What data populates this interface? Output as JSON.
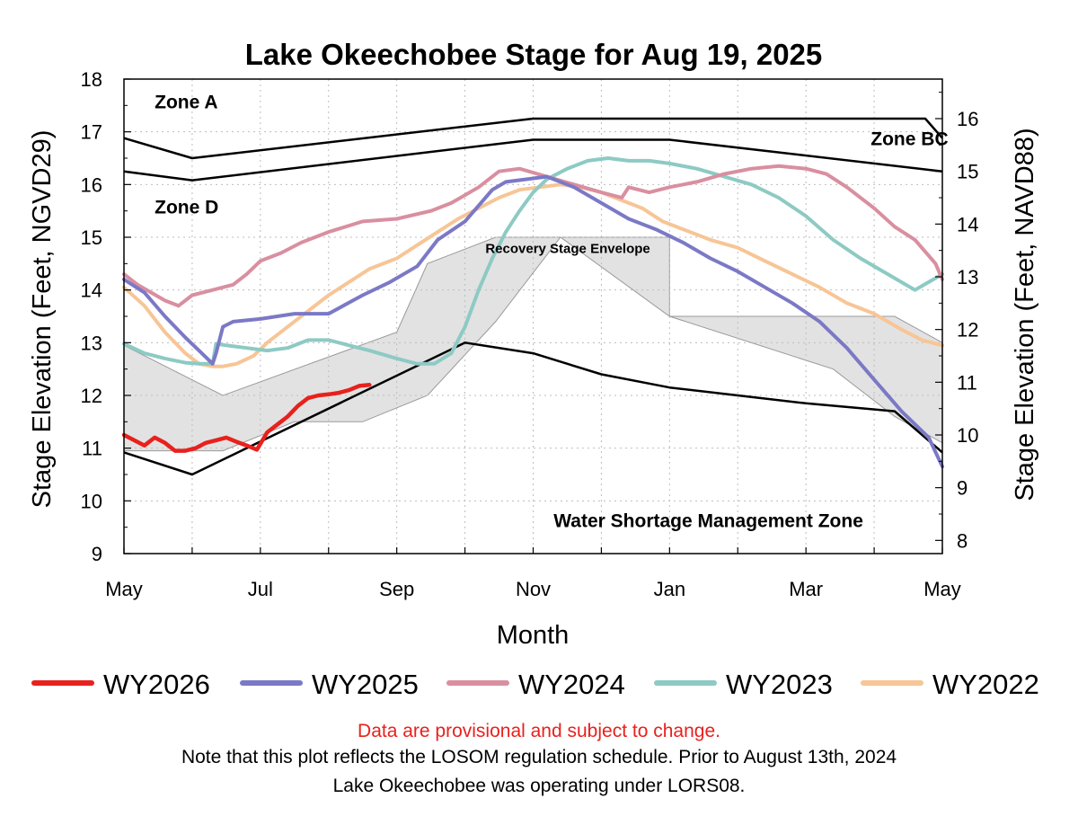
{
  "chart_data": {
    "type": "line",
    "title": "Lake Okeechobee Stage for Aug 19, 2025",
    "xlabel": "Month",
    "ylabel": "Stage Elevation (Feet, NGVD29)",
    "ylabel_right": "Stage Elevation (Feet, NAVD88)",
    "x_unit": "months since May 1",
    "xlim": [
      0,
      12
    ],
    "ylim": [
      9,
      18
    ],
    "ylim_right_offset": -1.25,
    "grid": true,
    "legend_position": "bottom",
    "x_tick_labels": [
      {
        "x": 0,
        "label": "May"
      },
      {
        "x": 2,
        "label": "Jul"
      },
      {
        "x": 4,
        "label": "Sep"
      },
      {
        "x": 6,
        "label": "Nov"
      },
      {
        "x": 8,
        "label": "Jan"
      },
      {
        "x": 10,
        "label": "Mar"
      },
      {
        "x": 12,
        "label": "May"
      }
    ],
    "y_ticks": [
      9,
      10,
      11,
      12,
      13,
      14,
      15,
      16,
      17,
      18
    ],
    "y_ticks_right": [
      8,
      9,
      10,
      11,
      12,
      13,
      14,
      15,
      16
    ],
    "zone_labels": [
      {
        "text": "Zone A",
        "x": 0.45,
        "y": 17.45
      },
      {
        "text": "Zone BC",
        "x": 10.95,
        "y": 16.75
      },
      {
        "text": "Zone D",
        "x": 0.45,
        "y": 15.45
      },
      {
        "text": "Water Shortage Management Zone",
        "x": 6.3,
        "y": 9.5
      }
    ],
    "envelope_label": {
      "text": "Recovery Stage Envelope",
      "x": 5.3,
      "y": 14.7
    },
    "schedule_lines": [
      {
        "name": "zone-a-line",
        "x": [
          0,
          1,
          6,
          10,
          11.75,
          12
        ],
        "y": [
          16.88,
          16.5,
          17.25,
          17.25,
          17.25,
          16.88
        ]
      },
      {
        "name": "zone-d-line",
        "x": [
          0,
          1,
          6,
          8,
          12
        ],
        "y": [
          16.25,
          16.08,
          16.85,
          16.85,
          16.25
        ]
      },
      {
        "name": "shortage-line",
        "x": [
          0,
          1,
          5,
          6,
          7,
          8,
          9,
          10,
          11.3,
          12
        ],
        "y": [
          10.92,
          10.5,
          13.0,
          12.8,
          12.4,
          12.15,
          12.0,
          11.85,
          11.7,
          10.92
        ]
      }
    ],
    "envelope": {
      "upper": {
        "x": [
          0,
          1.45,
          4.0,
          4.45,
          5.45,
          8.0,
          8.0,
          10.4,
          11.3,
          12
        ],
        "y": [
          12.95,
          12.0,
          13.2,
          14.5,
          15.0,
          15.0,
          13.5,
          13.5,
          13.5,
          13.0
        ]
      },
      "lower": {
        "x": [
          12,
          11.3,
          10.4,
          8.0,
          6.4,
          5.45,
          4.45,
          3.5,
          2.5,
          1.45,
          0
        ],
        "y": [
          11.1,
          11.6,
          12.5,
          13.5,
          15.0,
          13.4,
          12.0,
          11.5,
          11.5,
          10.95,
          10.95
        ]
      }
    },
    "series": [
      {
        "name": "WY2026",
        "color": "#e8211d",
        "x": [
          0,
          0.15,
          0.3,
          0.45,
          0.6,
          0.75,
          0.9,
          1.05,
          1.2,
          1.35,
          1.5,
          1.65,
          1.8,
          1.95,
          2.1,
          2.25,
          2.4,
          2.55,
          2.7,
          2.85,
          3.0,
          3.15,
          3.3,
          3.45,
          3.6
        ],
        "y": [
          11.25,
          11.15,
          11.05,
          11.2,
          11.1,
          10.95,
          10.95,
          11.0,
          11.1,
          11.15,
          11.2,
          11.12,
          11.05,
          10.97,
          11.3,
          11.45,
          11.6,
          11.8,
          11.95,
          12.0,
          12.02,
          12.05,
          12.1,
          12.18,
          12.2
        ]
      },
      {
        "name": "WY2025",
        "color": "#7b79c6",
        "x": [
          0,
          0.3,
          0.6,
          0.9,
          1.1,
          1.3,
          1.35,
          1.45,
          1.6,
          2.0,
          2.5,
          3.0,
          3.5,
          3.9,
          4.3,
          4.6,
          5.0,
          5.4,
          5.6,
          5.9,
          6.2,
          6.6,
          7.0,
          7.4,
          7.8,
          8.2,
          8.6,
          9.0,
          9.4,
          9.8,
          10.2,
          10.6,
          11.0,
          11.4,
          11.8,
          12
        ],
        "y": [
          14.2,
          13.95,
          13.5,
          13.1,
          12.85,
          12.6,
          12.8,
          13.3,
          13.4,
          13.45,
          13.55,
          13.55,
          13.9,
          14.15,
          14.45,
          14.95,
          15.3,
          15.9,
          16.05,
          16.1,
          16.15,
          15.95,
          15.65,
          15.35,
          15.15,
          14.9,
          14.6,
          14.35,
          14.05,
          13.75,
          13.4,
          12.9,
          12.3,
          11.7,
          11.2,
          10.65
        ]
      },
      {
        "name": "WY2024",
        "color": "#d98fa0",
        "x": [
          0,
          0.2,
          0.4,
          0.6,
          0.8,
          1.0,
          1.3,
          1.6,
          1.8,
          2.0,
          2.3,
          2.6,
          3.0,
          3.5,
          4.0,
          4.5,
          4.8,
          5.2,
          5.5,
          5.8,
          6.2,
          6.6,
          7.0,
          7.3,
          7.4,
          7.7,
          8.0,
          8.4,
          8.8,
          9.2,
          9.6,
          10.0,
          10.3,
          10.6,
          11.0,
          11.3,
          11.6,
          11.9,
          12
        ],
        "y": [
          14.3,
          14.1,
          13.95,
          13.8,
          13.7,
          13.9,
          14.0,
          14.1,
          14.3,
          14.55,
          14.7,
          14.9,
          15.1,
          15.3,
          15.35,
          15.5,
          15.65,
          15.95,
          16.25,
          16.3,
          16.15,
          16.0,
          15.85,
          15.75,
          15.95,
          15.85,
          15.95,
          16.05,
          16.2,
          16.3,
          16.35,
          16.3,
          16.2,
          15.95,
          15.55,
          15.2,
          14.95,
          14.5,
          14.2
        ]
      },
      {
        "name": "WY2023",
        "color": "#8dcac4",
        "x": [
          0,
          0.3,
          0.6,
          0.9,
          1.1,
          1.3,
          1.35,
          1.5,
          1.8,
          2.1,
          2.4,
          2.7,
          3.0,
          3.3,
          3.6,
          4.0,
          4.3,
          4.55,
          4.8,
          5.0,
          5.2,
          5.4,
          5.6,
          5.8,
          6.0,
          6.2,
          6.5,
          6.8,
          7.1,
          7.4,
          7.7,
          8.0,
          8.4,
          8.8,
          9.2,
          9.6,
          10.0,
          10.4,
          10.8,
          11.2,
          11.6,
          11.8,
          12
        ],
        "y": [
          12.98,
          12.8,
          12.7,
          12.62,
          12.6,
          12.6,
          12.98,
          12.95,
          12.9,
          12.85,
          12.9,
          13.05,
          13.05,
          12.95,
          12.85,
          12.7,
          12.6,
          12.6,
          12.8,
          13.3,
          14.0,
          14.6,
          15.1,
          15.5,
          15.85,
          16.1,
          16.3,
          16.45,
          16.5,
          16.45,
          16.45,
          16.4,
          16.3,
          16.15,
          16.0,
          15.75,
          15.4,
          14.95,
          14.6,
          14.3,
          14.0,
          14.15,
          14.3
        ]
      },
      {
        "name": "WY2022",
        "color": "#f7c596",
        "x": [
          0,
          0.3,
          0.6,
          0.9,
          1.1,
          1.3,
          1.45,
          1.65,
          1.9,
          2.1,
          2.4,
          2.7,
          3.0,
          3.3,
          3.6,
          4.0,
          4.3,
          4.6,
          4.9,
          5.2,
          5.5,
          5.8,
          6.1,
          6.4,
          6.7,
          7.0,
          7.3,
          7.6,
          7.9,
          8.2,
          8.6,
          9.0,
          9.4,
          9.8,
          10.2,
          10.6,
          11.0,
          11.4,
          11.7,
          12
        ],
        "y": [
          14.05,
          13.7,
          13.2,
          12.8,
          12.6,
          12.55,
          12.55,
          12.6,
          12.75,
          13.0,
          13.3,
          13.6,
          13.9,
          14.15,
          14.4,
          14.6,
          14.85,
          15.1,
          15.35,
          15.55,
          15.75,
          15.9,
          15.95,
          16.0,
          15.95,
          15.85,
          15.7,
          15.55,
          15.3,
          15.15,
          14.95,
          14.8,
          14.55,
          14.3,
          14.05,
          13.75,
          13.55,
          13.25,
          13.05,
          12.95
        ]
      }
    ]
  },
  "notes": {
    "provisional": "Data are provisional and subject to change.",
    "line1": "Note that this plot reflects the LOSOM regulation schedule. Prior to August 13th, 2024",
    "line2": "Lake Okeechobee was operating under LORS08."
  }
}
